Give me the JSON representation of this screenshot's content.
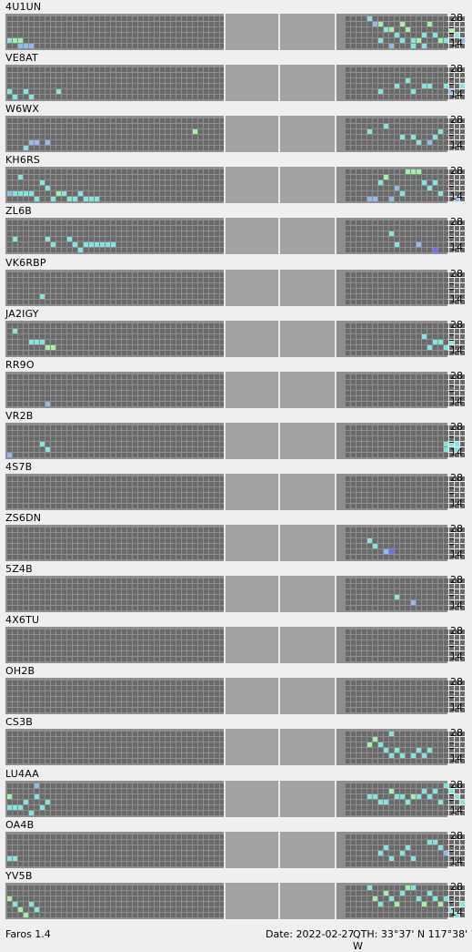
{
  "colors": {
    "off": "#6a6a6a",
    "low": "#80e6e0",
    "mid": "#9ff49f",
    "hi": "#8fbaf2",
    "strong": "#6c6cff"
  },
  "scale": {
    "top": "28",
    "bottom": "14"
  },
  "footer": {
    "app": "Faros 1.4",
    "date": "Date: 2022-02-27",
    "qth": "QTH: 33°37' N  117°38' W"
  },
  "beacons": [
    {
      "call": "4U1UN",
      "spots": [
        [
          0,
          4,
          "low"
        ],
        [
          1,
          4,
          "mid"
        ],
        [
          2,
          4,
          "mid"
        ],
        [
          2,
          5,
          "hi"
        ],
        [
          3,
          5,
          "hi"
        ],
        [
          4,
          5,
          "hi"
        ],
        [
          64,
          0,
          "low"
        ],
        [
          65,
          1,
          "hi"
        ],
        [
          66,
          1,
          "mid"
        ],
        [
          67,
          2,
          "low"
        ],
        [
          68,
          2,
          "mid"
        ],
        [
          69,
          3,
          "low"
        ],
        [
          70,
          1,
          "mid"
        ],
        [
          71,
          2,
          "mid"
        ],
        [
          72,
          4,
          "low"
        ],
        [
          73,
          4,
          "mid"
        ],
        [
          74,
          3,
          "low"
        ],
        [
          75,
          1,
          "mid"
        ],
        [
          76,
          3,
          "low"
        ],
        [
          77,
          4,
          "mid"
        ],
        [
          78,
          4,
          "low"
        ],
        [
          79,
          2,
          "mid"
        ],
        [
          80,
          3,
          "low"
        ],
        [
          81,
          4,
          "hi"
        ],
        [
          66,
          4,
          "low"
        ],
        [
          68,
          5,
          "hi"
        ],
        [
          70,
          4,
          "low"
        ],
        [
          72,
          5,
          "low"
        ],
        [
          74,
          5,
          "low"
        ]
      ]
    },
    {
      "call": "VE8AT",
      "spots": [
        [
          0,
          4,
          "low"
        ],
        [
          1,
          5,
          "low"
        ],
        [
          3,
          4,
          "low"
        ],
        [
          4,
          5,
          "low"
        ],
        [
          9,
          4,
          "low"
        ],
        [
          66,
          4,
          "low"
        ],
        [
          69,
          3,
          "low"
        ],
        [
          71,
          2,
          "low"
        ],
        [
          72,
          4,
          "low"
        ],
        [
          74,
          3,
          "low"
        ],
        [
          75,
          3,
          "low"
        ],
        [
          78,
          3,
          "low"
        ],
        [
          79,
          4,
          "hi"
        ],
        [
          81,
          3,
          "low"
        ]
      ]
    },
    {
      "call": "W6WX",
      "spots": [
        [
          3,
          5,
          "low"
        ],
        [
          4,
          4,
          "hi"
        ],
        [
          5,
          4,
          "hi"
        ],
        [
          7,
          4,
          "hi"
        ],
        [
          34,
          2,
          "mid"
        ],
        [
          64,
          2,
          "low"
        ],
        [
          67,
          1,
          "low"
        ],
        [
          70,
          3,
          "low"
        ],
        [
          72,
          3,
          "low"
        ],
        [
          73,
          4,
          "low"
        ],
        [
          75,
          4,
          "hi"
        ],
        [
          76,
          3,
          "low"
        ],
        [
          77,
          2,
          "low"
        ]
      ]
    },
    {
      "call": "KH6RS",
      "spots": [
        [
          2,
          1,
          "low"
        ],
        [
          0,
          4,
          "hi"
        ],
        [
          1,
          4,
          "low"
        ],
        [
          2,
          4,
          "low"
        ],
        [
          3,
          4,
          "low"
        ],
        [
          4,
          4,
          "low"
        ],
        [
          5,
          5,
          "low"
        ],
        [
          6,
          2,
          "low"
        ],
        [
          7,
          3,
          "low"
        ],
        [
          8,
          5,
          "low"
        ],
        [
          9,
          4,
          "mid"
        ],
        [
          10,
          4,
          "low"
        ],
        [
          11,
          5,
          "low"
        ],
        [
          12,
          5,
          "low"
        ],
        [
          13,
          4,
          "low"
        ],
        [
          14,
          5,
          "low"
        ],
        [
          15,
          5,
          "low"
        ],
        [
          16,
          5,
          "low"
        ],
        [
          66,
          2,
          "low"
        ],
        [
          67,
          1,
          "mid"
        ],
        [
          68,
          5,
          "hi"
        ],
        [
          69,
          3,
          "hi"
        ],
        [
          70,
          4,
          "low"
        ],
        [
          71,
          0,
          "mid"
        ],
        [
          72,
          0,
          "mid"
        ],
        [
          73,
          0,
          "mid"
        ],
        [
          74,
          2,
          "low"
        ],
        [
          75,
          3,
          "low"
        ],
        [
          76,
          2,
          "low"
        ],
        [
          77,
          4,
          "low"
        ],
        [
          80,
          5,
          "hi"
        ],
        [
          64,
          5,
          "hi"
        ],
        [
          65,
          5,
          "hi"
        ]
      ]
    },
    {
      "call": "ZL6B",
      "spots": [
        [
          1,
          3,
          "low"
        ],
        [
          7,
          3,
          "low"
        ],
        [
          8,
          4,
          "low"
        ],
        [
          11,
          3,
          "low"
        ],
        [
          12,
          4,
          "low"
        ],
        [
          13,
          5,
          "low"
        ],
        [
          14,
          4,
          "low"
        ],
        [
          15,
          4,
          "low"
        ],
        [
          16,
          4,
          "low"
        ],
        [
          17,
          4,
          "low"
        ],
        [
          18,
          4,
          "low"
        ],
        [
          19,
          4,
          "low"
        ],
        [
          68,
          2,
          "low"
        ],
        [
          69,
          4,
          "low"
        ],
        [
          73,
          4,
          "hi"
        ],
        [
          76,
          5,
          "strong"
        ]
      ]
    },
    {
      "call": "VK6RBP",
      "spots": [
        [
          6,
          4,
          "low"
        ]
      ]
    },
    {
      "call": "JA2IGY",
      "spots": [
        [
          1,
          1,
          "low"
        ],
        [
          4,
          3,
          "low"
        ],
        [
          5,
          3,
          "low"
        ],
        [
          6,
          3,
          "low"
        ],
        [
          7,
          4,
          "mid"
        ],
        [
          8,
          4,
          "mid"
        ],
        [
          74,
          2,
          "low"
        ],
        [
          75,
          4,
          "low"
        ],
        [
          76,
          3,
          "low"
        ],
        [
          77,
          3,
          "low"
        ],
        [
          78,
          4,
          "low"
        ],
        [
          79,
          3,
          "low"
        ]
      ]
    },
    {
      "call": "RR9O",
      "spots": [
        [
          7,
          5,
          "hi"
        ]
      ]
    },
    {
      "call": "VR2B",
      "spots": [
        [
          0,
          5,
          "hi"
        ],
        [
          6,
          3,
          "low"
        ],
        [
          7,
          4,
          "low"
        ],
        [
          78,
          3,
          "low"
        ],
        [
          79,
          3,
          "low"
        ],
        [
          80,
          3,
          "low"
        ],
        [
          78,
          4,
          "low"
        ],
        [
          80,
          4,
          "low"
        ]
      ]
    },
    {
      "call": "4S7B",
      "spots": []
    },
    {
      "call": "ZS6DN",
      "spots": [
        [
          64,
          2,
          "low"
        ],
        [
          65,
          3,
          "low"
        ],
        [
          67,
          4,
          "hi"
        ],
        [
          68,
          4,
          "strong"
        ]
      ]
    },
    {
      "call": "5Z4B",
      "spots": [
        [
          69,
          3,
          "low"
        ],
        [
          72,
          4,
          "hi"
        ]
      ]
    },
    {
      "call": "4X6TU",
      "spots": []
    },
    {
      "call": "OH2B",
      "spots": []
    },
    {
      "call": "CS3B",
      "spots": [
        [
          64,
          2,
          "mid"
        ],
        [
          65,
          1,
          "mid"
        ],
        [
          66,
          2,
          "low"
        ],
        [
          67,
          3,
          "low"
        ],
        [
          68,
          4,
          "low"
        ],
        [
          69,
          3,
          "low"
        ],
        [
          70,
          4,
          "low"
        ],
        [
          72,
          4,
          "low"
        ],
        [
          73,
          3,
          "low"
        ],
        [
          74,
          4,
          "low"
        ],
        [
          75,
          3,
          "low"
        ],
        [
          68,
          0,
          "low"
        ]
      ]
    },
    {
      "call": "LU4AA",
      "spots": [
        [
          0,
          2,
          "mid"
        ],
        [
          0,
          4,
          "low"
        ],
        [
          1,
          4,
          "low"
        ],
        [
          2,
          4,
          "low"
        ],
        [
          3,
          3,
          "low"
        ],
        [
          4,
          5,
          "low"
        ],
        [
          5,
          2,
          "low"
        ],
        [
          6,
          4,
          "low"
        ],
        [
          7,
          3,
          "low"
        ],
        [
          5,
          0,
          "hi"
        ],
        [
          64,
          2,
          "low"
        ],
        [
          65,
          2,
          "low"
        ],
        [
          66,
          3,
          "low"
        ],
        [
          67,
          3,
          "low"
        ],
        [
          68,
          1,
          "mid"
        ],
        [
          69,
          2,
          "low"
        ],
        [
          70,
          2,
          "low"
        ],
        [
          71,
          3,
          "low"
        ],
        [
          72,
          2,
          "mid"
        ],
        [
          73,
          2,
          "low"
        ],
        [
          74,
          1,
          "low"
        ],
        [
          75,
          2,
          "low"
        ],
        [
          76,
          1,
          "low"
        ],
        [
          77,
          3,
          "low"
        ],
        [
          78,
          0,
          "low"
        ],
        [
          79,
          1,
          "low"
        ],
        [
          80,
          2,
          "low"
        ],
        [
          81,
          3,
          "low"
        ]
      ]
    },
    {
      "call": "OA4B",
      "spots": [
        [
          0,
          4,
          "low"
        ],
        [
          1,
          4,
          "low"
        ],
        [
          66,
          3,
          "low"
        ],
        [
          67,
          2,
          "low"
        ],
        [
          68,
          4,
          "low"
        ],
        [
          70,
          3,
          "low"
        ],
        [
          71,
          2,
          "low"
        ],
        [
          72,
          4,
          "low"
        ],
        [
          75,
          1,
          "low"
        ],
        [
          76,
          1,
          "low"
        ],
        [
          77,
          2,
          "low"
        ],
        [
          78,
          3,
          "hi"
        ]
      ]
    },
    {
      "call": "YV5B",
      "spots": [
        [
          0,
          2,
          "mid"
        ],
        [
          1,
          3,
          "low"
        ],
        [
          2,
          4,
          "mid"
        ],
        [
          3,
          5,
          "mid"
        ],
        [
          4,
          3,
          "low"
        ],
        [
          5,
          4,
          "low"
        ],
        [
          64,
          0,
          "low"
        ],
        [
          65,
          2,
          "mid"
        ],
        [
          66,
          3,
          "low"
        ],
        [
          67,
          1,
          "mid"
        ],
        [
          68,
          2,
          "low"
        ],
        [
          69,
          3,
          "mid"
        ],
        [
          70,
          1,
          "low"
        ],
        [
          71,
          0,
          "mid"
        ],
        [
          72,
          0,
          "low"
        ],
        [
          73,
          2,
          "low"
        ],
        [
          74,
          3,
          "mid"
        ],
        [
          75,
          1,
          "low"
        ],
        [
          76,
          2,
          "low"
        ],
        [
          77,
          3,
          "mid"
        ],
        [
          78,
          2,
          "low"
        ],
        [
          79,
          4,
          "low"
        ],
        [
          80,
          5,
          "low"
        ],
        [
          81,
          3,
          "low"
        ]
      ]
    }
  ]
}
